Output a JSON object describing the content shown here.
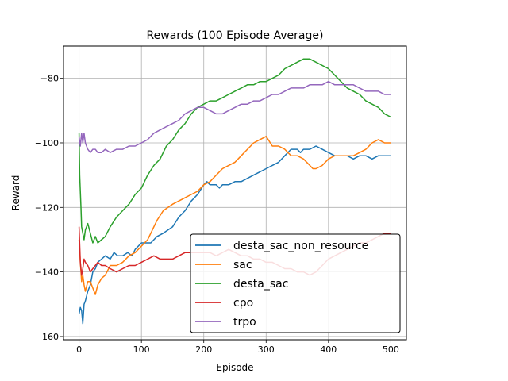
{
  "chart_data": {
    "type": "line",
    "title": "Rewards (100 Episode Average)",
    "xlabel": "Episode",
    "ylabel": "Reward",
    "xlim": [
      -25,
      525
    ],
    "ylim": [
      -161,
      -70
    ],
    "xticks": [
      0,
      100,
      200,
      300,
      400,
      500
    ],
    "yticks": [
      -160,
      -140,
      -120,
      -100,
      -80
    ],
    "grid": true,
    "legend_position": "lower-right",
    "series": [
      {
        "name": "desta_sac_non_resource",
        "color": "#1f77b4",
        "points": [
          [
            0,
            -153
          ],
          [
            2,
            -151
          ],
          [
            4,
            -152
          ],
          [
            6,
            -156
          ],
          [
            8,
            -150
          ],
          [
            10,
            -149
          ],
          [
            14,
            -146
          ],
          [
            18,
            -144
          ],
          [
            22,
            -140
          ],
          [
            26,
            -139
          ],
          [
            30,
            -137
          ],
          [
            36,
            -136
          ],
          [
            42,
            -135
          ],
          [
            50,
            -136
          ],
          [
            56,
            -134
          ],
          [
            62,
            -135
          ],
          [
            70,
            -135
          ],
          [
            78,
            -134
          ],
          [
            85,
            -135
          ],
          [
            90,
            -133
          ],
          [
            100,
            -131
          ],
          [
            110,
            -131
          ],
          [
            115,
            -131
          ],
          [
            125,
            -129
          ],
          [
            135,
            -128
          ],
          [
            150,
            -126
          ],
          [
            160,
            -123
          ],
          [
            170,
            -121
          ],
          [
            180,
            -118
          ],
          [
            190,
            -116
          ],
          [
            200,
            -113
          ],
          [
            205,
            -112
          ],
          [
            210,
            -113
          ],
          [
            220,
            -113
          ],
          [
            225,
            -114
          ],
          [
            230,
            -113
          ],
          [
            240,
            -113
          ],
          [
            250,
            -112
          ],
          [
            260,
            -112
          ],
          [
            270,
            -111
          ],
          [
            280,
            -110
          ],
          [
            290,
            -109
          ],
          [
            300,
            -108
          ],
          [
            310,
            -107
          ],
          [
            320,
            -106
          ],
          [
            330,
            -104
          ],
          [
            340,
            -102
          ],
          [
            350,
            -102
          ],
          [
            355,
            -103
          ],
          [
            360,
            -102
          ],
          [
            370,
            -102
          ],
          [
            380,
            -101
          ],
          [
            390,
            -102
          ],
          [
            400,
            -103
          ],
          [
            410,
            -104
          ],
          [
            420,
            -104
          ],
          [
            430,
            -104
          ],
          [
            440,
            -105
          ],
          [
            450,
            -104
          ],
          [
            460,
            -104
          ],
          [
            470,
            -105
          ],
          [
            480,
            -104
          ],
          [
            490,
            -104
          ],
          [
            500,
            -104
          ]
        ]
      },
      {
        "name": "sac",
        "color": "#ff7f0e",
        "points": [
          [
            0,
            -130
          ],
          [
            2,
            -137
          ],
          [
            4,
            -143
          ],
          [
            6,
            -141
          ],
          [
            8,
            -144
          ],
          [
            10,
            -146
          ],
          [
            14,
            -143
          ],
          [
            18,
            -143
          ],
          [
            22,
            -145
          ],
          [
            26,
            -147
          ],
          [
            30,
            -144
          ],
          [
            36,
            -142
          ],
          [
            42,
            -141
          ],
          [
            50,
            -138
          ],
          [
            60,
            -138
          ],
          [
            70,
            -137
          ],
          [
            80,
            -135
          ],
          [
            90,
            -134
          ],
          [
            100,
            -132
          ],
          [
            110,
            -130
          ],
          [
            115,
            -128
          ],
          [
            125,
            -124
          ],
          [
            135,
            -121
          ],
          [
            150,
            -119
          ],
          [
            160,
            -118
          ],
          [
            170,
            -117
          ],
          [
            180,
            -116
          ],
          [
            190,
            -115
          ],
          [
            200,
            -113
          ],
          [
            210,
            -112
          ],
          [
            220,
            -110
          ],
          [
            230,
            -108
          ],
          [
            240,
            -107
          ],
          [
            250,
            -106
          ],
          [
            260,
            -104
          ],
          [
            270,
            -102
          ],
          [
            280,
            -100
          ],
          [
            290,
            -99
          ],
          [
            300,
            -98
          ],
          [
            310,
            -101
          ],
          [
            320,
            -101
          ],
          [
            330,
            -102
          ],
          [
            340,
            -104
          ],
          [
            350,
            -104
          ],
          [
            360,
            -105
          ],
          [
            370,
            -107
          ],
          [
            375,
            -108
          ],
          [
            380,
            -108
          ],
          [
            390,
            -107
          ],
          [
            400,
            -105
          ],
          [
            410,
            -104
          ],
          [
            420,
            -104
          ],
          [
            430,
            -104
          ],
          [
            440,
            -104
          ],
          [
            450,
            -103
          ],
          [
            460,
            -102
          ],
          [
            470,
            -100
          ],
          [
            480,
            -99
          ],
          [
            490,
            -100
          ],
          [
            500,
            -100
          ]
        ]
      },
      {
        "name": "desta_sac",
        "color": "#2ca02c",
        "points": [
          [
            0,
            -97
          ],
          [
            1,
            -110
          ],
          [
            2,
            -115
          ],
          [
            3,
            -120
          ],
          [
            4,
            -126
          ],
          [
            6,
            -128
          ],
          [
            8,
            -130
          ],
          [
            10,
            -127
          ],
          [
            14,
            -125
          ],
          [
            18,
            -128
          ],
          [
            22,
            -131
          ],
          [
            26,
            -129
          ],
          [
            30,
            -131
          ],
          [
            36,
            -130
          ],
          [
            42,
            -129
          ],
          [
            50,
            -126
          ],
          [
            60,
            -123
          ],
          [
            70,
            -121
          ],
          [
            80,
            -119
          ],
          [
            90,
            -116
          ],
          [
            100,
            -114
          ],
          [
            110,
            -110
          ],
          [
            120,
            -107
          ],
          [
            130,
            -105
          ],
          [
            140,
            -101
          ],
          [
            150,
            -99
          ],
          [
            160,
            -96
          ],
          [
            170,
            -94
          ],
          [
            180,
            -91
          ],
          [
            190,
            -89
          ],
          [
            200,
            -88
          ],
          [
            210,
            -87
          ],
          [
            220,
            -87
          ],
          [
            230,
            -86
          ],
          [
            240,
            -85
          ],
          [
            250,
            -84
          ],
          [
            260,
            -83
          ],
          [
            270,
            -82
          ],
          [
            280,
            -82
          ],
          [
            290,
            -81
          ],
          [
            300,
            -81
          ],
          [
            310,
            -80
          ],
          [
            320,
            -79
          ],
          [
            330,
            -77
          ],
          [
            340,
            -76
          ],
          [
            350,
            -75
          ],
          [
            360,
            -74
          ],
          [
            370,
            -74
          ],
          [
            380,
            -75
          ],
          [
            390,
            -76
          ],
          [
            400,
            -77
          ],
          [
            410,
            -79
          ],
          [
            420,
            -81
          ],
          [
            430,
            -83
          ],
          [
            440,
            -84
          ],
          [
            450,
            -85
          ],
          [
            460,
            -87
          ],
          [
            470,
            -88
          ],
          [
            480,
            -89
          ],
          [
            490,
            -91
          ],
          [
            500,
            -92
          ]
        ]
      },
      {
        "name": "cpo",
        "color": "#d62728",
        "points": [
          [
            0,
            -126
          ],
          [
            2,
            -137
          ],
          [
            4,
            -141
          ],
          [
            6,
            -139
          ],
          [
            8,
            -136
          ],
          [
            10,
            -137
          ],
          [
            14,
            -138
          ],
          [
            18,
            -140
          ],
          [
            22,
            -139
          ],
          [
            26,
            -138
          ],
          [
            30,
            -137
          ],
          [
            36,
            -138
          ],
          [
            42,
            -138
          ],
          [
            50,
            -139
          ],
          [
            60,
            -140
          ],
          [
            70,
            -139
          ],
          [
            80,
            -138
          ],
          [
            90,
            -138
          ],
          [
            100,
            -137
          ],
          [
            110,
            -136
          ],
          [
            120,
            -135
          ],
          [
            130,
            -136
          ],
          [
            140,
            -136
          ],
          [
            150,
            -136
          ],
          [
            160,
            -135
          ],
          [
            170,
            -134
          ],
          [
            180,
            -134
          ],
          [
            190,
            -134
          ],
          [
            200,
            -134
          ],
          [
            210,
            -134
          ],
          [
            220,
            -135
          ],
          [
            230,
            -134
          ],
          [
            240,
            -133
          ],
          [
            250,
            -134
          ],
          [
            260,
            -135
          ],
          [
            270,
            -135
          ],
          [
            280,
            -136
          ],
          [
            290,
            -136
          ],
          [
            300,
            -137
          ],
          [
            310,
            -137
          ],
          [
            320,
            -138
          ],
          [
            330,
            -139
          ],
          [
            340,
            -139
          ],
          [
            350,
            -140
          ],
          [
            360,
            -140
          ],
          [
            370,
            -141
          ],
          [
            380,
            -140
          ],
          [
            390,
            -138
          ],
          [
            400,
            -136
          ],
          [
            410,
            -135
          ],
          [
            420,
            -134
          ],
          [
            430,
            -133
          ],
          [
            440,
            -132
          ],
          [
            450,
            -131
          ],
          [
            460,
            -131
          ],
          [
            470,
            -130
          ],
          [
            480,
            -129
          ],
          [
            490,
            -128
          ],
          [
            500,
            -128
          ]
        ]
      },
      {
        "name": "trpo",
        "color": "#9467bd",
        "points": [
          [
            0,
            -98
          ],
          [
            2,
            -101
          ],
          [
            4,
            -97
          ],
          [
            6,
            -100
          ],
          [
            8,
            -97
          ],
          [
            10,
            -100
          ],
          [
            14,
            -102
          ],
          [
            18,
            -103
          ],
          [
            22,
            -102
          ],
          [
            26,
            -102
          ],
          [
            30,
            -103
          ],
          [
            36,
            -103
          ],
          [
            42,
            -102
          ],
          [
            50,
            -103
          ],
          [
            60,
            -102
          ],
          [
            70,
            -102
          ],
          [
            80,
            -101
          ],
          [
            90,
            -101
          ],
          [
            100,
            -100
          ],
          [
            110,
            -99
          ],
          [
            120,
            -97
          ],
          [
            130,
            -96
          ],
          [
            140,
            -95
          ],
          [
            150,
            -94
          ],
          [
            160,
            -93
          ],
          [
            170,
            -91
          ],
          [
            180,
            -90
          ],
          [
            190,
            -89
          ],
          [
            200,
            -89
          ],
          [
            210,
            -90
          ],
          [
            220,
            -91
          ],
          [
            230,
            -91
          ],
          [
            240,
            -90
          ],
          [
            250,
            -89
          ],
          [
            260,
            -88
          ],
          [
            270,
            -88
          ],
          [
            280,
            -87
          ],
          [
            290,
            -87
          ],
          [
            300,
            -86
          ],
          [
            310,
            -85
          ],
          [
            320,
            -85
          ],
          [
            330,
            -84
          ],
          [
            340,
            -83
          ],
          [
            350,
            -83
          ],
          [
            360,
            -83
          ],
          [
            370,
            -82
          ],
          [
            380,
            -82
          ],
          [
            390,
            -82
          ],
          [
            400,
            -81
          ],
          [
            410,
            -82
          ],
          [
            420,
            -82
          ],
          [
            430,
            -82
          ],
          [
            440,
            -82
          ],
          [
            450,
            -83
          ],
          [
            460,
            -84
          ],
          [
            470,
            -84
          ],
          [
            480,
            -84
          ],
          [
            490,
            -85
          ],
          [
            500,
            -85
          ]
        ]
      }
    ]
  }
}
